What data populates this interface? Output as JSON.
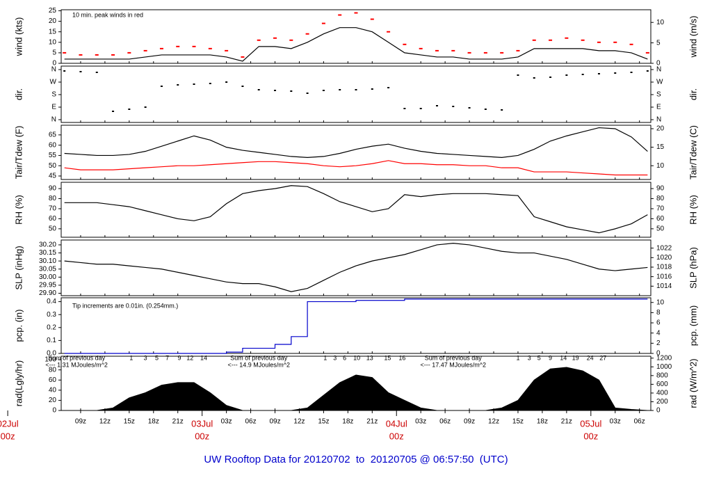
{
  "title": "UW Rooftop Data for 20120702  to  20120705 @ 06:57:50  (UTC)",
  "time": {
    "x": [
      7,
      9,
      11,
      13,
      15,
      17,
      19,
      21,
      23,
      25,
      27,
      29,
      31,
      33,
      35,
      37,
      39,
      41,
      43,
      45,
      47,
      49,
      51,
      53,
      55,
      57,
      59,
      61,
      63,
      65,
      67,
      69,
      71,
      73,
      75,
      77,
      79
    ],
    "xlim": [
      6.6,
      79.4
    ],
    "xticks": [
      {
        "value": 9,
        "label": "09z"
      },
      {
        "value": 12,
        "label": "12z"
      },
      {
        "value": 15,
        "label": "15z"
      },
      {
        "value": 18,
        "label": "18z"
      },
      {
        "value": 21,
        "label": "21z"
      },
      {
        "value": 27,
        "label": "03z"
      },
      {
        "value": 30,
        "label": "06z"
      },
      {
        "value": 33,
        "label": "09z"
      },
      {
        "value": 36,
        "label": "12z"
      },
      {
        "value": 39,
        "label": "15z"
      },
      {
        "value": 42,
        "label": "18z"
      },
      {
        "value": 45,
        "label": "21z"
      },
      {
        "value": 51,
        "label": "03z"
      },
      {
        "value": 54,
        "label": "06z"
      },
      {
        "value": 57,
        "label": "09z"
      },
      {
        "value": 60,
        "label": "12z"
      },
      {
        "value": 63,
        "label": "15z"
      },
      {
        "value": 66,
        "label": "18z"
      },
      {
        "value": 69,
        "label": "21z"
      },
      {
        "value": 75,
        "label": "03z"
      },
      {
        "value": 78,
        "label": "06z"
      }
    ],
    "date_ticks": [
      {
        "value": 0,
        "label": "02Jul",
        "sublabel": "00z"
      },
      {
        "value": 24,
        "label": "03Jul",
        "sublabel": "00z"
      },
      {
        "value": 48,
        "label": "04Jul",
        "sublabel": "00z"
      },
      {
        "value": 72,
        "label": "05Jul",
        "sublabel": "00z"
      }
    ]
  },
  "chart_data": [
    {
      "type": "line",
      "ylabel": "wind (kts)",
      "y2label": "wind (m/s)",
      "ylim": [
        0,
        25.5
      ],
      "yticks": [
        0,
        5,
        10,
        15,
        20,
        25
      ],
      "y2lim": [
        0,
        13.1
      ],
      "y2ticks": [
        0,
        5,
        10
      ],
      "annotation": {
        "text": "10 min. peak winds in red",
        "color": "#ff0000"
      },
      "series": [
        {
          "name": "wind",
          "color": "#000000",
          "values": [
            2,
            2,
            2,
            2,
            2,
            3,
            4,
            4,
            4,
            4,
            3,
            1,
            8,
            8,
            7,
            10,
            14,
            17,
            17,
            15,
            10,
            5,
            4,
            3,
            3,
            2,
            2,
            2,
            3,
            7,
            7,
            7,
            7,
            6,
            6,
            5,
            2
          ]
        },
        {
          "name": "peak",
          "color": "#ff0000",
          "style": "points",
          "values": [
            5,
            4,
            4,
            4,
            5,
            6,
            7,
            8,
            8,
            7,
            6,
            3,
            11,
            12,
            11,
            14,
            19,
            23,
            24,
            21,
            15,
            9,
            7,
            6,
            6,
            5,
            5,
            5,
            6,
            11,
            11,
            12,
            11,
            10,
            10,
            9,
            5
          ]
        }
      ]
    },
    {
      "type": "scatter",
      "ylabel": "dir.",
      "y2label": "dir.",
      "ylim": [
        -20,
        385
      ],
      "yticks": [
        {
          "value": 0,
          "label": "N"
        },
        {
          "value": 90,
          "label": "E"
        },
        {
          "value": 180,
          "label": "S"
        },
        {
          "value": 270,
          "label": "W"
        },
        {
          "value": 360,
          "label": "N"
        }
      ],
      "y2lim": [
        -20,
        385
      ],
      "y2ticks": [
        {
          "value": 0,
          "label": "N"
        },
        {
          "value": 90,
          "label": "E"
        },
        {
          "value": 180,
          "label": "S"
        },
        {
          "value": 270,
          "label": "W"
        },
        {
          "value": 360,
          "label": "N"
        }
      ],
      "series": [
        {
          "name": "direction",
          "color": "#000000",
          "values": [
            350,
            345,
            340,
            60,
            75,
            90,
            240,
            250,
            255,
            260,
            270,
            240,
            215,
            210,
            205,
            190,
            210,
            215,
            215,
            220,
            230,
            80,
            80,
            100,
            95,
            85,
            75,
            70,
            320,
            300,
            305,
            320,
            325,
            330,
            335,
            340,
            350
          ]
        }
      ]
    },
    {
      "type": "line",
      "ylabel": "Tair/Tdew (F)",
      "y2label": "Tair/Tdew (C)",
      "ylim": [
        43.3,
        69.7
      ],
      "yticks": [
        45,
        50,
        55,
        60,
        65
      ],
      "y2lim": [
        6.28,
        20.94
      ],
      "y2ticks": [
        10,
        15,
        20
      ],
      "series": [
        {
          "name": "Tair",
          "color": "#000000",
          "values": [
            56,
            55.5,
            55,
            55,
            55.5,
            57,
            59.5,
            62,
            64.5,
            62.5,
            59,
            57.5,
            56.5,
            55.5,
            54.5,
            54,
            54.5,
            56,
            58,
            59.5,
            60.5,
            58.5,
            57,
            56,
            55.5,
            55,
            54.5,
            54,
            55,
            58,
            62,
            64.5,
            66.5,
            68.5,
            68,
            64,
            57
          ]
        },
        {
          "name": "Tdew",
          "color": "#ff0000",
          "values": [
            49,
            48,
            48,
            48,
            48.5,
            49,
            49.5,
            50,
            50,
            50.5,
            51,
            51.5,
            52,
            52,
            51.5,
            51,
            50,
            49.5,
            50,
            51,
            52.5,
            51,
            51,
            50.5,
            50.5,
            50,
            50,
            49,
            49,
            47,
            47,
            47,
            46.5,
            46,
            45.5,
            45.5,
            45.5
          ]
        }
      ]
    },
    {
      "type": "line",
      "ylabel": "RH (%)",
      "y2label": "RH (%)",
      "ylim": [
        41.6,
        96.3
      ],
      "yticks": [
        50,
        60,
        70,
        80,
        90
      ],
      "y2lim": [
        41.6,
        96.3
      ],
      "y2ticks": [
        50,
        60,
        70,
        80,
        90
      ],
      "series": [
        {
          "name": "RH",
          "color": "#000000",
          "values": [
            76,
            76,
            76,
            74,
            72,
            68,
            64,
            60,
            58,
            62,
            75,
            85,
            88,
            90,
            93,
            92,
            85,
            77,
            72,
            67,
            70,
            84,
            82,
            84,
            85,
            85,
            85,
            84,
            83,
            62,
            57,
            52,
            49,
            46,
            50,
            55,
            64
          ]
        }
      ]
    },
    {
      "type": "line",
      "ylabel": "SLP (inHg)",
      "y2label": "SLP (hPa)",
      "ylim": [
        29.885,
        30.23
      ],
      "yticks": [
        {
          "value": 29.9,
          "label": "29.90"
        },
        29.95,
        {
          "value": 30,
          "label": "30.00"
        },
        30.05,
        {
          "value": 30.1,
          "label": "30.10"
        },
        30.15,
        {
          "value": 30.2,
          "label": "30.20"
        }
      ],
      "y2lim": [
        1012.0,
        1023.7
      ],
      "y2ticks": [
        1014,
        1016,
        1018,
        1020,
        1022
      ],
      "series": [
        {
          "name": "SLP",
          "color": "#000000",
          "values": [
            30.1,
            30.09,
            30.08,
            30.08,
            30.07,
            30.06,
            30.05,
            30.03,
            30.01,
            29.99,
            29.97,
            29.96,
            29.96,
            29.94,
            29.91,
            29.93,
            29.98,
            30.03,
            30.07,
            30.1,
            30.12,
            30.14,
            30.17,
            30.2,
            30.21,
            30.2,
            30.18,
            30.16,
            30.15,
            30.15,
            30.13,
            30.11,
            30.08,
            30.05,
            30.04,
            30.05,
            30.06
          ]
        }
      ]
    },
    {
      "type": "step",
      "ylabel": "pcp. (in)",
      "y2label": "pcp. (mm)",
      "ylim": [
        0,
        0.43
      ],
      "yticks": [
        {
          "value": 0,
          "label": "0.0"
        },
        0.1,
        0.2,
        0.3,
        0.4
      ],
      "y2lim": [
        0,
        10.92
      ],
      "y2ticks": [
        0,
        2,
        4,
        6,
        8,
        10
      ],
      "annotation": {
        "text": "Tip increments are 0.01in. (0.254mm.)",
        "color": "#0000cc"
      },
      "series": [
        {
          "name": "pcp",
          "color": "#0000cc",
          "values": [
            0,
            0,
            0,
            0,
            0,
            0,
            0,
            0,
            0,
            0,
            0.01,
            0.04,
            0.04,
            0.07,
            0.13,
            0.4,
            0.4,
            0.4,
            0.41,
            0.41,
            0.41,
            0.42,
            0.42,
            0.42,
            0.42,
            0.42,
            0.42,
            0.42,
            0.42,
            0.42,
            0.42,
            0.42,
            0.42,
            0.42,
            0.42,
            0.42,
            0.42
          ]
        }
      ]
    },
    {
      "type": "area",
      "ylabel": "rad(Lgly/hr)",
      "y2label": "rad (W/m^2)",
      "ylim": [
        0,
        107
      ],
      "yticks": [
        0,
        20,
        40,
        60,
        80,
        100
      ],
      "y2lim": [
        0,
        1244
      ],
      "y2ticks": [
        0,
        200,
        400,
        600,
        800,
        1000,
        1200
      ],
      "daily_sums": [
        {
          "x": 8.5,
          "line1": "Sum of previous day",
          "line2": "<--- 1.31 MJoules/m^2"
        },
        {
          "x": 31,
          "line1": "Sum of previous day",
          "line2": "<--- 14.9 MJoules/m^2"
        },
        {
          "x": 55,
          "line1": "Sum of previous day",
          "line2": "<--- 17.47 MJoules/m^2"
        }
      ],
      "hour_marks": [
        {
          "x": 15.25,
          "label": "1"
        },
        {
          "x": 17,
          "label": "3"
        },
        {
          "x": 18.4,
          "label": "5"
        },
        {
          "x": 19.7,
          "label": "7"
        },
        {
          "x": 21.2,
          "label": "9"
        },
        {
          "x": 22.5,
          "label": "12"
        },
        {
          "x": 24.2,
          "label": "14"
        },
        {
          "x": 39.2,
          "label": "1"
        },
        {
          "x": 40.4,
          "label": "3"
        },
        {
          "x": 41.6,
          "label": "6"
        },
        {
          "x": 43.1,
          "label": "10"
        },
        {
          "x": 44.7,
          "label": "13"
        },
        {
          "x": 46.9,
          "label": "15"
        },
        {
          "x": 48.7,
          "label": "16"
        },
        {
          "x": 63,
          "label": "1"
        },
        {
          "x": 64.4,
          "label": "3"
        },
        {
          "x": 65.6,
          "label": "5"
        },
        {
          "x": 67,
          "label": "9"
        },
        {
          "x": 68.6,
          "label": "14"
        },
        {
          "x": 70.1,
          "label": "19"
        },
        {
          "x": 71.9,
          "label": "24"
        },
        {
          "x": 73.5,
          "label": "27"
        }
      ],
      "series": [
        {
          "name": "rad",
          "color": "#000000",
          "values": [
            0,
            0,
            0,
            5,
            25,
            35,
            50,
            55,
            55,
            35,
            10,
            0,
            0,
            0,
            0,
            5,
            30,
            55,
            70,
            65,
            35,
            20,
            5,
            0,
            0,
            0,
            0,
            5,
            20,
            60,
            82,
            85,
            78,
            60,
            5,
            2,
            0
          ]
        }
      ]
    }
  ]
}
